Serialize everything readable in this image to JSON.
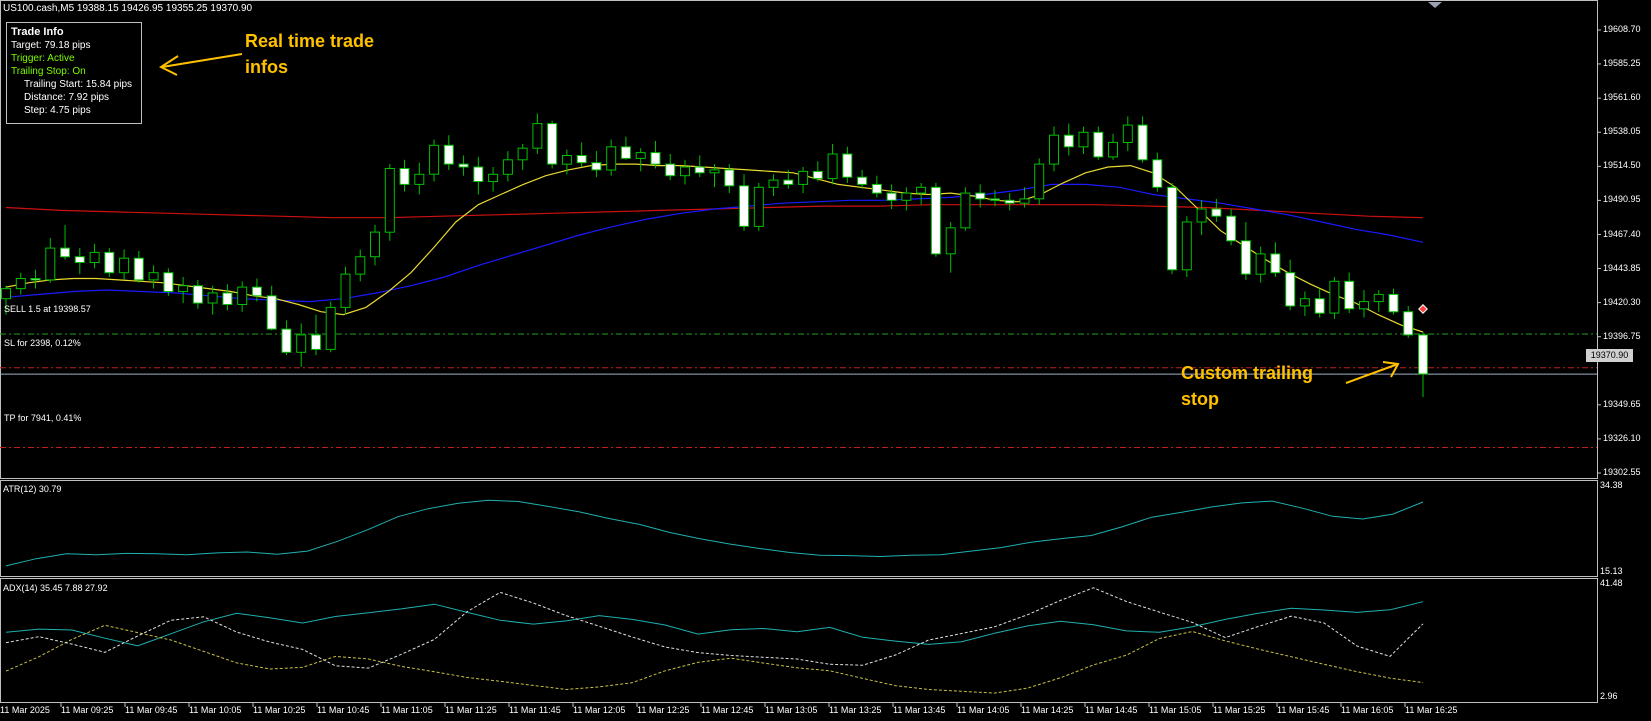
{
  "header": {
    "symbol_line": "US100.cash,M5  19388.15 19426.95 19355.25 19370.90"
  },
  "trade_info": {
    "title": "Trade Info",
    "target": "Target: 79.18 pips",
    "trigger": "Trigger: Active",
    "trailing_stop": "Trailing Stop: On",
    "trailing_start": "Trailing Start: 15.84 pips",
    "distance": "Distance: 7.92 pips",
    "step": "Step: 4.75 pips"
  },
  "annotations": {
    "realtime": [
      "Real time trade",
      "infos"
    ],
    "trailing": [
      "Custom trailing",
      "stop"
    ]
  },
  "lines": {
    "sell_label": "SELL 1.5 at 19398.57",
    "sl_label": "SL for 2398, 0.12%",
    "tp_label": "TP for 7941, 0.41%",
    "current_price": "19370.90"
  },
  "price_axis": [
    "19608.70",
    "19585.25",
    "19561.60",
    "19538.05",
    "19514.50",
    "19490.95",
    "19467.40",
    "19443.85",
    "19420.30",
    "19396.75",
    "19349.65",
    "19326.10",
    "19302.55"
  ],
  "time_axis": [
    "11 Mar 2025",
    "11 Mar 09:25",
    "11 Mar 09:45",
    "11 Mar 10:05",
    "11 Mar 10:25",
    "11 Mar 10:45",
    "11 Mar 11:05",
    "11 Mar 11:25",
    "11 Mar 11:45",
    "11 Mar 12:05",
    "11 Mar 12:25",
    "11 Mar 12:45",
    "11 Mar 13:05",
    "11 Mar 13:25",
    "11 Mar 13:45",
    "11 Mar 14:05",
    "11 Mar 14:25",
    "11 Mar 14:45",
    "11 Mar 15:05",
    "11 Mar 15:25",
    "11 Mar 15:45",
    "11 Mar 16:05",
    "11 Mar 16:25"
  ],
  "atr": {
    "label": "ATR(12) 30.79",
    "max_label": "34.38",
    "min_label": "15.13"
  },
  "adx": {
    "label": "ADX(14) 35.45 7.88 27.92",
    "max_label": "41.48",
    "min_label": "2.96"
  },
  "colors": {
    "bull_candle": "#000000",
    "bear_candle": "#ffffff",
    "candle_outline": "#00c000",
    "ma_fast": "#e8d830",
    "ma_mid": "#1a1aff",
    "ma_slow": "#d01010",
    "sell_line": "#20a020",
    "sl_line": "#c02020",
    "atr_line": "#1fb0b0",
    "adx_line": "#1fb0b0",
    "annotation": "#ffc000"
  },
  "chart_data": {
    "type": "candlestick",
    "timeframe": "M5",
    "ylim": [
      19290,
      19620
    ],
    "candles_ohlc": [
      [
        19423,
        19432,
        19412,
        19430
      ],
      [
        19430,
        19441,
        19426,
        19437
      ],
      [
        19437,
        19443,
        19430,
        19436
      ],
      [
        19436,
        19465,
        19434,
        19458
      ],
      [
        19458,
        19474,
        19450,
        19452
      ],
      [
        19452,
        19458,
        19440,
        19448
      ],
      [
        19448,
        19461,
        19444,
        19455
      ],
      [
        19455,
        19458,
        19438,
        19441
      ],
      [
        19441,
        19457,
        19436,
        19451
      ],
      [
        19451,
        19456,
        19434,
        19436
      ],
      [
        19436,
        19446,
        19430,
        19441
      ],
      [
        19441,
        19444,
        19425,
        19428
      ],
      [
        19428,
        19438,
        19420,
        19432
      ],
      [
        19432,
        19436,
        19416,
        19420
      ],
      [
        19420,
        19432,
        19412,
        19427
      ],
      [
        19427,
        19433,
        19415,
        19419
      ],
      [
        19419,
        19435,
        19414,
        19431
      ],
      [
        19431,
        19437,
        19421,
        19425
      ],
      [
        19425,
        19432,
        19401,
        19402
      ],
      [
        19402,
        19408,
        19384,
        19386
      ],
      [
        19386,
        19406,
        19376,
        19398
      ],
      [
        19398,
        19412,
        19384,
        19388
      ],
      [
        19388,
        19421,
        19386,
        19417
      ],
      [
        19417,
        19445,
        19412,
        19440
      ],
      [
        19440,
        19457,
        19435,
        19452
      ],
      [
        19452,
        19474,
        19446,
        19469
      ],
      [
        19469,
        19516,
        19463,
        19513
      ],
      [
        19513,
        19519,
        19497,
        19502
      ],
      [
        19502,
        19517,
        19495,
        19509
      ],
      [
        19509,
        19533,
        19504,
        19529
      ],
      [
        19529,
        19536,
        19512,
        19516
      ],
      [
        19516,
        19522,
        19508,
        19514
      ],
      [
        19514,
        19521,
        19495,
        19504
      ],
      [
        19504,
        19514,
        19497,
        19509
      ],
      [
        19509,
        19525,
        19504,
        19519
      ],
      [
        19519,
        19530,
        19512,
        19527
      ],
      [
        19527,
        19551,
        19523,
        19544
      ],
      [
        19544,
        19546,
        19513,
        19516
      ],
      [
        19516,
        19526,
        19509,
        19522
      ],
      [
        19522,
        19531,
        19514,
        19517
      ],
      [
        19517,
        19525,
        19507,
        19512
      ],
      [
        19512,
        19533,
        19508,
        19528
      ],
      [
        19528,
        19535,
        19519,
        19520
      ],
      [
        19520,
        19527,
        19511,
        19524
      ],
      [
        19524,
        19532,
        19513,
        19516
      ],
      [
        19516,
        19523,
        19505,
        19508
      ],
      [
        19508,
        19519,
        19502,
        19514
      ],
      [
        19514,
        19522,
        19507,
        19510
      ],
      [
        19510,
        19516,
        19500,
        19512
      ],
      [
        19512,
        19516,
        19496,
        19501
      ],
      [
        19501,
        19509,
        19470,
        19473
      ],
      [
        19473,
        19503,
        19470,
        19500
      ],
      [
        19500,
        19509,
        19494,
        19505
      ],
      [
        19505,
        19512,
        19499,
        19502
      ],
      [
        19502,
        19514,
        19496,
        19511
      ],
      [
        19511,
        19518,
        19504,
        19506
      ],
      [
        19506,
        19530,
        19502,
        19523
      ],
      [
        19523,
        19528,
        19503,
        19507
      ],
      [
        19507,
        19512,
        19499,
        19502
      ],
      [
        19502,
        19508,
        19493,
        19496
      ],
      [
        19496,
        19502,
        19485,
        19491
      ],
      [
        19491,
        19500,
        19484,
        19496
      ],
      [
        19496,
        19503,
        19488,
        19500
      ],
      [
        19500,
        19503,
        19452,
        19454
      ],
      [
        19454,
        19476,
        19441,
        19472
      ],
      [
        19472,
        19500,
        19470,
        19496
      ],
      [
        19496,
        19502,
        19486,
        19492
      ],
      [
        19492,
        19498,
        19487,
        19491
      ],
      [
        19491,
        19496,
        19484,
        19489
      ],
      [
        19489,
        19500,
        19486,
        19492
      ],
      [
        19492,
        19520,
        19488,
        19516
      ],
      [
        19516,
        19542,
        19511,
        19536
      ],
      [
        19536,
        19544,
        19522,
        19528
      ],
      [
        19528,
        19542,
        19523,
        19538
      ],
      [
        19538,
        19542,
        19519,
        19521
      ],
      [
        19521,
        19537,
        19519,
        19531
      ],
      [
        19531,
        19549,
        19525,
        19543
      ],
      [
        19543,
        19549,
        19517,
        19519
      ],
      [
        19519,
        19524,
        19497,
        19500
      ],
      [
        19500,
        19503,
        19440,
        19443
      ],
      [
        19443,
        19480,
        19438,
        19476
      ],
      [
        19476,
        19491,
        19467,
        19485
      ],
      [
        19485,
        19492,
        19476,
        19480
      ],
      [
        19480,
        19485,
        19460,
        19463
      ],
      [
        19463,
        19476,
        19436,
        19440
      ],
      [
        19440,
        19459,
        19434,
        19454
      ],
      [
        19454,
        19462,
        19438,
        19441
      ],
      [
        19441,
        19450,
        19415,
        19418
      ],
      [
        19418,
        19428,
        19411,
        19423
      ],
      [
        19423,
        19430,
        19410,
        19413
      ],
      [
        19413,
        19438,
        19409,
        19435
      ],
      [
        19435,
        19441,
        19413,
        19416
      ],
      [
        19416,
        19429,
        19410,
        19421
      ],
      [
        19421,
        19429,
        19414,
        19426
      ],
      [
        19426,
        19430,
        19412,
        19414
      ],
      [
        19414,
        19418,
        19396,
        19398
      ],
      [
        19398,
        19400,
        19355,
        19371
      ]
    ],
    "ma_fast_values": [
      19431,
      19434,
      19436,
      19437,
      19437,
      19436,
      19435,
      19434,
      19432,
      19430,
      19428,
      19425,
      19423,
      19419,
      19414,
      19412,
      19417,
      19428,
      19441,
      19458,
      19476,
      19488,
      19495,
      19502,
      19508,
      19512,
      19515,
      19516,
      19516,
      19515,
      19515,
      19514,
      19513,
      19512,
      19511,
      19510,
      19506,
      19502,
      19500,
      19498,
      19496,
      19495,
      19496,
      19494,
      19491,
      19490,
      19495,
      19503,
      19510,
      19514,
      19515,
      19510,
      19500,
      19485,
      19470,
      19460,
      19450,
      19441,
      19433,
      19426,
      19420,
      19412,
      19405,
      19400
    ],
    "ma_mid_values": [
      19424,
      19426,
      19428,
      19429,
      19428,
      19427,
      19425,
      19423,
      19422,
      19421,
      19423,
      19427,
      19432,
      19438,
      19446,
      19453,
      19460,
      19467,
      19473,
      19478,
      19482,
      19485,
      19487,
      19489,
      19490,
      19491,
      19491,
      19492,
      19493,
      19495,
      19498,
      19502,
      19502,
      19500,
      19495,
      19492,
      19489,
      19485,
      19481,
      19476,
      19471,
      19467,
      19462
    ],
    "ma_slow_values": [
      19486,
      19484,
      19483,
      19482,
      19481,
      19480,
      19479,
      19479,
      19480,
      19481,
      19482,
      19483,
      19484,
      19485,
      19486,
      19487,
      19487,
      19488,
      19488,
      19488,
      19488,
      19487,
      19486,
      19484,
      19482,
      19480,
      19479
    ],
    "sell_level": 19398.57,
    "sl_level": 19375.3,
    "tp_level": 19320.2,
    "current_price": 19370.9,
    "atr_values": [
      16.5,
      18.1,
      19.2,
      19.0,
      19.3,
      19.2,
      19.0,
      19.4,
      19.6,
      19.1,
      19.8,
      22.0,
      24.6,
      27.5,
      29.3,
      30.5,
      31.2,
      30.9,
      29.8,
      28.6,
      27.1,
      25.8,
      24.0,
      22.6,
      21.4,
      20.4,
      19.5,
      18.9,
      18.8,
      18.6,
      18.9,
      19.0,
      19.8,
      20.6,
      21.8,
      22.6,
      23.3,
      25.2,
      27.4,
      28.5,
      29.7,
      30.6,
      31.0,
      29.4,
      27.6,
      27.0,
      28.1,
      30.79
    ],
    "adx_main": [
      25.0,
      26.1,
      25.8,
      23.0,
      20.4,
      24.5,
      28.6,
      31.5,
      30.0,
      28.2,
      30.4,
      31.7,
      33.0,
      34.6,
      31.8,
      29.1,
      27.8,
      28.9,
      30.7,
      29.4,
      27.5,
      24.4,
      25.9,
      26.3,
      25.2,
      26.7,
      23.3,
      22.0,
      20.9,
      21.8,
      24.7,
      27.2,
      28.8,
      27.6,
      25.5,
      25.0,
      26.9,
      29.4,
      31.5,
      33.2,
      32.6,
      31.8,
      32.7,
      35.45
    ],
    "adx_plus": [
      11.8,
      16.7,
      22.6,
      27.4,
      24.9,
      22.4,
      18.5,
      14.6,
      12.5,
      13.1,
      16.8,
      15.9,
      13.4,
      11.6,
      9.6,
      8.3,
      6.9,
      5.5,
      6.4,
      7.8,
      11.9,
      14.8,
      16.2,
      14.5,
      12.9,
      11.9,
      9.3,
      6.8,
      5.5,
      4.9,
      4.3,
      6.0,
      9.5,
      13.9,
      17.2,
      22.9,
      25.3,
      22.1,
      19.3,
      16.7,
      14.1,
      11.6,
      9.4,
      7.88
    ],
    "adx_minus": [
      21.5,
      23.5,
      21.0,
      18.2,
      23.8,
      29.1,
      30.3,
      25.1,
      21.7,
      19.2,
      13.6,
      12.8,
      17.5,
      22.6,
      32.1,
      38.6,
      35.0,
      30.7,
      27.1,
      23.4,
      20.0,
      18.1,
      17.1,
      16.5,
      15.9,
      14.1,
      13.8,
      17.3,
      22.4,
      24.6,
      26.9,
      31.0,
      35.9,
      40.2,
      35.5,
      31.9,
      28.4,
      23.2,
      27.0,
      30.5,
      28.2,
      20.3,
      16.8,
      27.92
    ]
  }
}
